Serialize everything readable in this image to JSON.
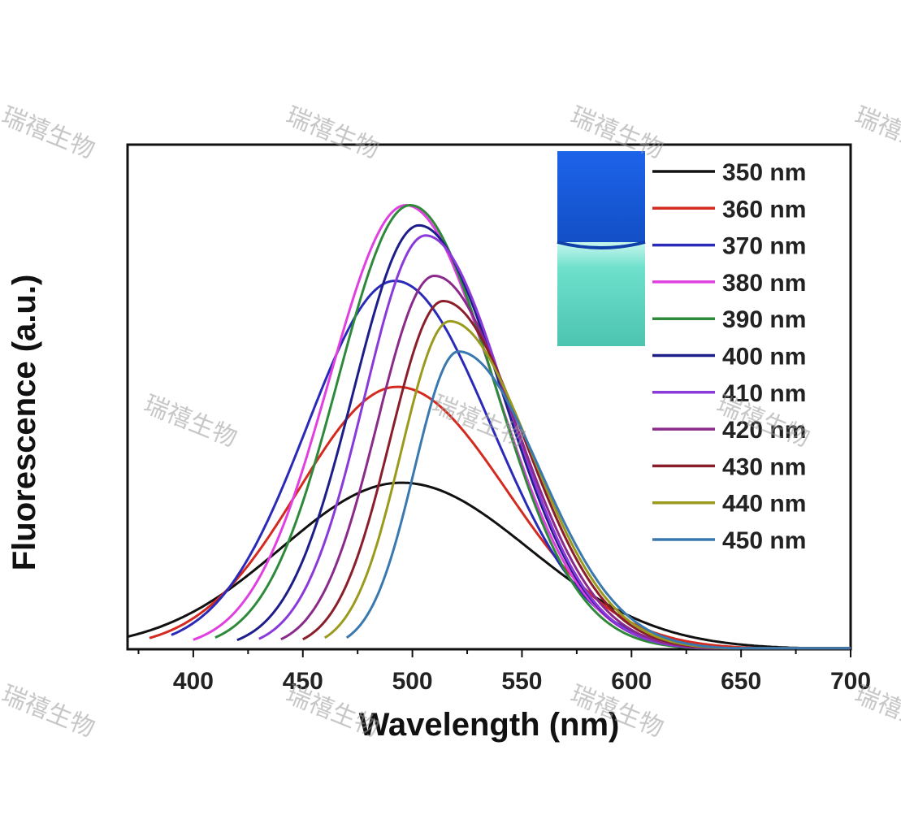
{
  "chart_data": {
    "type": "line",
    "title": "",
    "xlabel": "Wavelength (nm)",
    "ylabel": "Fluorescence (a.u.)",
    "xlim": [
      370,
      700
    ],
    "ylim": [
      0,
      1.0
    ],
    "x_ticks": [
      400,
      450,
      500,
      550,
      600,
      650,
      700
    ],
    "y_ticks_shown": false,
    "grid": false,
    "legend_position": "top-right",
    "series": [
      {
        "name": "350 nm",
        "color": "#111111",
        "start": 370,
        "peak_x": 495,
        "peak_y": 0.33,
        "sigma_left": 55,
        "sigma_right": 58
      },
      {
        "name": "360 nm",
        "color": "#d42a20",
        "start": 380,
        "peak_x": 493,
        "peak_y": 0.52,
        "sigma_left": 45,
        "sigma_right": 50
      },
      {
        "name": "370 nm",
        "color": "#2a2ab8",
        "start": 390,
        "peak_x": 492,
        "peak_y": 0.73,
        "sigma_left": 40,
        "sigma_right": 44
      },
      {
        "name": "380 nm",
        "color": "#e040e0",
        "start": 400,
        "peak_x": 497,
        "peak_y": 0.88,
        "sigma_left": 35,
        "sigma_right": 40
      },
      {
        "name": "390 nm",
        "color": "#2e8a3a",
        "start": 410,
        "peak_x": 499,
        "peak_y": 0.88,
        "sigma_left": 33,
        "sigma_right": 38
      },
      {
        "name": "400 nm",
        "color": "#1e1e8a",
        "start": 420,
        "peak_x": 503,
        "peak_y": 0.84,
        "sigma_left": 30,
        "sigma_right": 38
      },
      {
        "name": "410 nm",
        "color": "#8a3ad8",
        "start": 430,
        "peak_x": 506,
        "peak_y": 0.82,
        "sigma_left": 28,
        "sigma_right": 37
      },
      {
        "name": "420 nm",
        "color": "#8a2a8a",
        "start": 440,
        "peak_x": 510,
        "peak_y": 0.74,
        "sigma_left": 26,
        "sigma_right": 37
      },
      {
        "name": "430 nm",
        "color": "#8a1e2a",
        "start": 450,
        "peak_x": 514,
        "peak_y": 0.69,
        "sigma_left": 24,
        "sigma_right": 37
      },
      {
        "name": "440 nm",
        "color": "#9a9a1e",
        "start": 460,
        "peak_x": 517,
        "peak_y": 0.65,
        "sigma_left": 22,
        "sigma_right": 37
      },
      {
        "name": "450 nm",
        "color": "#3a78b0",
        "start": 470,
        "peak_x": 521,
        "peak_y": 0.59,
        "sigma_left": 20,
        "sigma_right": 37
      }
    ]
  },
  "watermark": {
    "text": "瑞禧生物"
  },
  "inset": {
    "top_color": "#1a5adc",
    "bottom_color": "#5fd8c4"
  }
}
